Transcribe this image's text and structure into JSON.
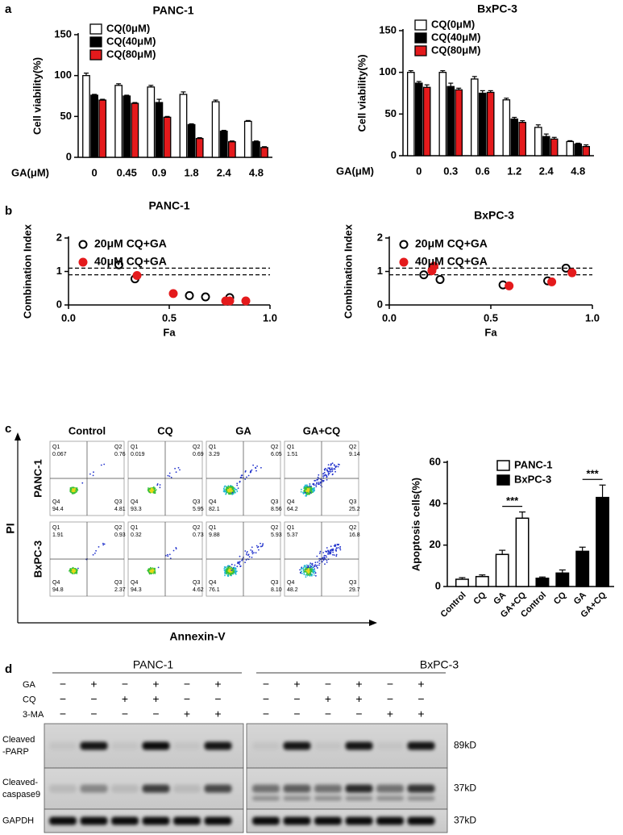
{
  "panel_labels": [
    "a",
    "b",
    "c",
    "d"
  ],
  "chart_data": [
    {
      "type": "bar",
      "title": "PANC-1",
      "y_label": "Cell viability(%)",
      "x_label": "GA(μM)",
      "categories": [
        "0",
        "0.45",
        "0.9",
        "1.8",
        "2.4",
        "4.8"
      ],
      "series": [
        {
          "name": "CQ(0μM)",
          "color": "#ffffff",
          "values": [
            100,
            88,
            86,
            77,
            68,
            44
          ],
          "errors": [
            3,
            2,
            2,
            3,
            2,
            1
          ]
        },
        {
          "name": "CQ(40μM)",
          "color": "#000000",
          "values": [
            76,
            75,
            67,
            40,
            32,
            19
          ],
          "errors": [
            1,
            1,
            4,
            1,
            1,
            1
          ]
        },
        {
          "name": "CQ(80μM)",
          "color": "#e41a1c",
          "values": [
            70,
            66,
            49,
            23,
            19,
            12
          ],
          "errors": [
            1,
            1,
            1,
            1,
            1,
            1
          ]
        }
      ],
      "ylim": [
        0,
        150
      ],
      "yticks": [
        0,
        50,
        100,
        150
      ]
    },
    {
      "type": "bar",
      "title": "BxPC-3",
      "y_label": "Cell viability(%)",
      "x_label": "GA(μM)",
      "categories": [
        "0",
        "0.3",
        "0.6",
        "1.2",
        "2.4",
        "4.8"
      ],
      "series": [
        {
          "name": "CQ(0μM)",
          "color": "#ffffff",
          "values": [
            100,
            100,
            92,
            67,
            34,
            17
          ],
          "errors": [
            2,
            2,
            3,
            2,
            3,
            1
          ]
        },
        {
          "name": "CQ(40μM)",
          "color": "#000000",
          "values": [
            87,
            83,
            75,
            44,
            23,
            14
          ],
          "errors": [
            2,
            4,
            3,
            2,
            3,
            1
          ]
        },
        {
          "name": "CQ(80μM)",
          "color": "#e41a1c",
          "values": [
            82,
            79,
            76,
            40,
            20,
            11
          ],
          "errors": [
            3,
            2,
            2,
            2,
            2,
            2
          ]
        }
      ],
      "ylim": [
        0,
        150
      ],
      "yticks": [
        0,
        50,
        100,
        150
      ]
    },
    {
      "type": "scatter",
      "title": "PANC-1",
      "y_label": "Combination Index",
      "x_label": "Fa",
      "xlim": [
        0,
        1
      ],
      "xticks": [
        {
          "value": 0,
          "label": "0.0"
        },
        0.5,
        {
          "value": 1,
          "label": "1.0"
        }
      ],
      "ylim": [
        0,
        2
      ],
      "yticks": [
        0,
        1,
        2
      ],
      "reference_lines": [
        0.9,
        1.1
      ],
      "series": [
        {
          "name": "20μM CQ+GA",
          "color": "#000000",
          "marker": "open",
          "x": [
            0.25,
            0.33,
            0.6,
            0.68,
            0.8
          ],
          "values": [
            1.2,
            0.78,
            0.28,
            0.24,
            0.22
          ]
        },
        {
          "name": "40μM CQ+GA",
          "color": "#e41a1c",
          "marker": "filled",
          "x": [
            0.34,
            0.52,
            0.78,
            0.8,
            0.88
          ],
          "values": [
            0.88,
            0.34,
            0.12,
            0.12,
            0.12
          ]
        }
      ]
    },
    {
      "type": "scatter",
      "title": "BxPC-3",
      "y_label": "Combination Index",
      "x_label": "Fa",
      "xlim": [
        0,
        1
      ],
      "xticks": [
        {
          "value": 0,
          "label": "0.0"
        },
        0.5,
        {
          "value": 1,
          "label": "1.0"
        }
      ],
      "ylim": [
        0,
        2
      ],
      "yticks": [
        0,
        1,
        2
      ],
      "reference_lines": [
        0.9,
        1.1
      ],
      "series": [
        {
          "name": "20μM CQ+GA",
          "color": "#000000",
          "marker": "open",
          "x": [
            0.17,
            0.25,
            0.56,
            0.78,
            0.87
          ],
          "values": [
            0.9,
            0.76,
            0.6,
            0.72,
            1.1
          ]
        },
        {
          "name": "40μM CQ+GA",
          "color": "#e41a1c",
          "marker": "filled",
          "x": [
            0.21,
            0.22,
            0.59,
            0.8,
            0.9
          ],
          "values": [
            1.02,
            1.16,
            0.57,
            0.69,
            0.96
          ]
        }
      ]
    },
    {
      "type": "grouped_bar",
      "y_label": "Apoptosis cells(%)",
      "categories": [
        "Control",
        "CQ",
        "GA",
        "GA+CQ"
      ],
      "series": [
        {
          "name": "PANC-1",
          "color": "#ffffff",
          "values": [
            3.5,
            4.8,
            15.5,
            33
          ],
          "errors": [
            0.8,
            0.8,
            2,
            3
          ]
        },
        {
          "name": "BxPC-3",
          "color": "#000000",
          "values": [
            4,
            6.5,
            17,
            43
          ],
          "errors": [
            0.6,
            1.5,
            2,
            6
          ]
        }
      ],
      "significance": [
        "***",
        "***"
      ],
      "ylim": [
        0,
        60
      ],
      "yticks": [
        0,
        20,
        40,
        60
      ]
    }
  ],
  "flow": {
    "columns": [
      "Control",
      "CQ",
      "GA",
      "GA+CQ"
    ],
    "rows": [
      "PANC-1",
      "BxPC-3"
    ],
    "y_label": "PI",
    "x_label": "Annexin-V",
    "quadrant_names": [
      "Q1",
      "Q2",
      "Q3",
      "Q4"
    ],
    "plots": [
      [
        [
          "0.067",
          "0.76",
          "4.81",
          "94.4"
        ],
        [
          "0.019",
          "0.69",
          "5.95",
          "93.3"
        ],
        [
          "3.29",
          "6.05",
          "8.56",
          "82.1"
        ],
        [
          "1.51",
          "9.14",
          "25.2",
          "64.2"
        ]
      ],
      [
        [
          "1.91",
          "0.93",
          "2.37",
          "94.8"
        ],
        [
          "0.32",
          "0.73",
          "4.62",
          "94.3"
        ],
        [
          "9.88",
          "5.93",
          "8.10",
          "76.1"
        ],
        [
          "5.37",
          "16.8",
          "29.7",
          "48.2"
        ]
      ]
    ]
  },
  "western": {
    "groups": [
      "PANC-1",
      "BxPC-3"
    ],
    "treatments": [
      {
        "name": "GA",
        "signs": [
          [
            "−",
            "+",
            "−",
            "+",
            "−",
            "+"
          ],
          [
            "−",
            "+",
            "−",
            "+",
            "−",
            "+"
          ]
        ]
      },
      {
        "name": "CQ",
        "signs": [
          [
            "−",
            "−",
            "+",
            "+",
            "−",
            "−"
          ],
          [
            "−",
            "−",
            "+",
            "+",
            "−",
            "−"
          ]
        ]
      },
      {
        "name": "3-MA",
        "signs": [
          [
            "−",
            "−",
            "−",
            "−",
            "+",
            "+"
          ],
          [
            "−",
            "−",
            "−",
            "−",
            "+",
            "+"
          ]
        ]
      }
    ],
    "blots": [
      {
        "label": [
          "Cleaved",
          "-PARP"
        ],
        "size": "89kD"
      },
      {
        "label": [
          "Cleaved-",
          "caspase9"
        ],
        "size": "37kD"
      },
      {
        "label": [
          "GAPDH"
        ],
        "size": "37kD"
      }
    ]
  }
}
